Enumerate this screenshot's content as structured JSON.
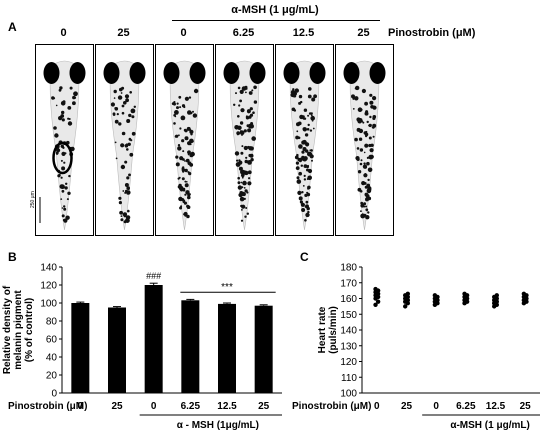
{
  "panel_a": {
    "letter": "A",
    "msh_header": "α-MSH (1 μg/mL)",
    "pinostrobin_label": "Pinostrobin (μM)",
    "columns": [
      "0",
      "25",
      "0",
      "6.25",
      "12.5",
      "25"
    ],
    "scale_bar": "250 μm",
    "image_description_icon": "zebrafish-larva-image"
  },
  "panel_b": {
    "letter": "B",
    "ylabel_line1": "Relative density of",
    "ylabel_line2": "melanin pigment",
    "ylabel_line3": "(% of control)",
    "y_ticks": [
      "0",
      "20",
      "40",
      "60",
      "80",
      "100",
      "120",
      "140"
    ],
    "xrow_label": "Pinostrobin (μM)",
    "x_values": [
      "0",
      "25",
      "0",
      "6.25",
      "12.5",
      "25"
    ],
    "group_label": "α - MSH (1μg/mL)",
    "sig_hash": "###",
    "sig_stars": "***"
  },
  "panel_c": {
    "letter": "C",
    "ylabel_line1": "Heart rate",
    "ylabel_line2": "(puls/min)",
    "y_ticks": [
      "100",
      "110",
      "120",
      "130",
      "140",
      "150",
      "160",
      "170",
      "180"
    ],
    "xrow_label": "Pinostrobin (μM)",
    "x_values": [
      "0",
      "25",
      "0",
      "6.25",
      "12.5",
      "25"
    ],
    "group_label": "α-MSH (1 μg/mL)"
  },
  "chart_data": [
    {
      "type": "bar",
      "categories": [
        "0",
        "25",
        "0",
        "6.25",
        "12.5",
        "25"
      ],
      "values": [
        100,
        95,
        120,
        103,
        99,
        97
      ],
      "errors": [
        1,
        1,
        2,
        1,
        1,
        1
      ],
      "ylabel": "Relative density of melanin pigment (% of control)",
      "ylim": [
        0,
        140
      ],
      "bar_color": "#000000"
    },
    {
      "type": "scatter",
      "categories": [
        "0",
        "25",
        "0",
        "6.25",
        "12.5",
        "25"
      ],
      "points": [
        [
          156,
          158,
          160,
          161,
          162,
          163,
          164,
          165,
          166
        ],
        [
          155,
          157,
          158,
          159,
          160,
          161,
          162,
          163
        ],
        [
          156,
          157,
          158,
          159,
          160,
          161,
          162
        ],
        [
          157,
          158,
          159,
          160,
          161,
          162,
          163
        ],
        [
          155,
          156,
          157,
          158,
          159,
          160,
          161,
          162
        ],
        [
          157,
          158,
          159,
          160,
          161,
          162,
          163
        ]
      ],
      "ylabel": "Heart rate (puls/min)",
      "ylim": [
        100,
        180
      ],
      "point_color": "#000000"
    }
  ]
}
